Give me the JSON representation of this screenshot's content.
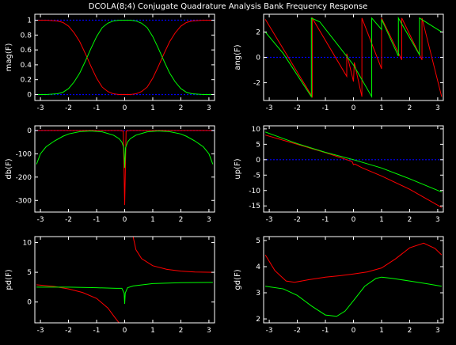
{
  "figure": {
    "title": "DCOLA(8;4) Conjugate Quadrature Analysis Bank Frequency Response",
    "background": "#000000",
    "axes_color": "#ffffff",
    "series_colors": {
      "red": "#ff0000",
      "green": "#00ff00",
      "reference": "#0000ff"
    }
  },
  "chart_data": [
    {
      "type": "line",
      "ylabel": "mag(F)",
      "xlim": [
        -3.2,
        3.2
      ],
      "ylim": [
        -0.08,
        1.08
      ],
      "xticks": [
        -3,
        -2,
        -1,
        0,
        1,
        2,
        3
      ],
      "yticks": [
        0,
        0.2,
        0.4,
        0.6,
        0.8,
        1
      ],
      "ytick_labels": [
        "0",
        "0.2",
        "0.4",
        "0.6",
        "0.8",
        "1"
      ],
      "reference_lines_y": [
        0,
        1
      ],
      "series": [
        {
          "color": "red",
          "x": [
            -3.14,
            -2.8,
            -2.4,
            -2.2,
            -2.0,
            -1.8,
            -1.6,
            -1.4,
            -1.2,
            -1.0,
            -0.8,
            -0.6,
            -0.4,
            -0.2,
            0,
            0.2,
            0.4,
            0.6,
            0.8,
            1.0,
            1.2,
            1.4,
            1.6,
            1.8,
            2.0,
            2.2,
            2.4,
            2.8,
            3.14
          ],
          "y": [
            1.0,
            1.0,
            0.99,
            0.97,
            0.92,
            0.83,
            0.71,
            0.55,
            0.38,
            0.22,
            0.1,
            0.04,
            0.01,
            0.0,
            0.0,
            0.0,
            0.01,
            0.04,
            0.1,
            0.22,
            0.38,
            0.55,
            0.71,
            0.83,
            0.92,
            0.97,
            0.99,
            1.0,
            1.0
          ]
        },
        {
          "color": "green",
          "x": [
            -3.14,
            -2.8,
            -2.4,
            -2.2,
            -2.0,
            -1.8,
            -1.6,
            -1.4,
            -1.2,
            -1.0,
            -0.8,
            -0.6,
            -0.4,
            -0.2,
            0,
            0.2,
            0.4,
            0.6,
            0.8,
            1.0,
            1.2,
            1.4,
            1.6,
            1.8,
            2.0,
            2.2,
            2.4,
            2.8,
            3.14
          ],
          "y": [
            0.0,
            0.0,
            0.01,
            0.03,
            0.08,
            0.17,
            0.29,
            0.45,
            0.62,
            0.78,
            0.9,
            0.96,
            0.99,
            1.0,
            1.0,
            1.0,
            0.99,
            0.96,
            0.9,
            0.78,
            0.62,
            0.45,
            0.29,
            0.17,
            0.08,
            0.03,
            0.01,
            0.0,
            0.0
          ]
        }
      ]
    },
    {
      "type": "line",
      "ylabel": "ang(F)",
      "xlim": [
        -3.2,
        3.2
      ],
      "ylim": [
        -3.4,
        3.4
      ],
      "xticks": [
        -3,
        -2,
        -1,
        0,
        1,
        2,
        3
      ],
      "yticks": [
        -2,
        0,
        2
      ],
      "reference_lines_y": [
        0
      ],
      "series": [
        {
          "color": "red",
          "x": [
            -3.14,
            -1.47,
            -1.47,
            -0.24,
            -0.24,
            0.0,
            0.03,
            0.3,
            0.3,
            1.0,
            1.0,
            1.72,
            1.72,
            2.44,
            2.44,
            3.14
          ],
          "y": [
            3.0,
            -3.1,
            3.1,
            -1.5,
            0.3,
            -1.9,
            -0.4,
            -3.1,
            3.1,
            -0.9,
            3.1,
            -0.2,
            3.1,
            -0.2,
            3.1,
            -3.1
          ]
        },
        {
          "color": "green",
          "x": [
            -3.14,
            -2.5,
            -1.5,
            -1.5,
            -1.2,
            -0.6,
            0.0,
            0.65,
            0.65,
            1.0,
            1.0,
            1.6,
            1.6,
            2.35,
            2.35,
            3.14
          ],
          "y": [
            2.0,
            0.3,
            -3.1,
            3.1,
            2.8,
            1.1,
            -0.6,
            -3.1,
            3.1,
            2.2,
            3.0,
            0.1,
            3.1,
            0.2,
            3.1,
            2.0
          ]
        }
      ]
    },
    {
      "type": "line",
      "ylabel": "db(F)",
      "xlim": [
        -3.2,
        3.2
      ],
      "ylim": [
        -350,
        20
      ],
      "xticks": [
        -3,
        -2,
        -1,
        0,
        1,
        2,
        3
      ],
      "yticks": [
        -300,
        -200,
        -100,
        0
      ],
      "reference_lines_y": [
        0
      ],
      "series": [
        {
          "color": "red",
          "x": [
            -3.14,
            -2.0,
            -1.0,
            -0.5,
            -0.2,
            -0.05,
            0,
            0.05,
            0.2,
            0.5,
            1.0,
            2.0,
            3.14
          ],
          "y": [
            0,
            0,
            0,
            0,
            0,
            -2,
            -320,
            -2,
            0,
            0,
            0,
            0,
            0
          ]
        },
        {
          "color": "green",
          "x": [
            -3.14,
            -3.0,
            -2.8,
            -2.5,
            -2.2,
            -2.0,
            -1.6,
            -1.2,
            -0.8,
            -0.4,
            -0.2,
            -0.1,
            -0.03,
            0,
            0.03,
            0.1,
            0.2,
            0.4,
            0.8,
            1.2,
            1.6,
            2.0,
            2.2,
            2.5,
            2.8,
            3.0,
            3.14
          ],
          "y": [
            -145,
            -100,
            -70,
            -45,
            -25,
            -15,
            -5,
            -2,
            -6,
            -20,
            -35,
            -50,
            -75,
            -160,
            -75,
            -50,
            -35,
            -20,
            -6,
            -2,
            -5,
            -15,
            -25,
            -45,
            -70,
            -100,
            -145
          ]
        }
      ]
    },
    {
      "type": "line",
      "ylabel": "up(F)",
      "xlim": [
        -3.2,
        3.2
      ],
      "ylim": [
        -17,
        11
      ],
      "xticks": [
        -3,
        -2,
        -1,
        0,
        1,
        2,
        3
      ],
      "yticks": [
        -15,
        -10,
        -5,
        0,
        5,
        10
      ],
      "reference_lines_y": [
        0
      ],
      "series": [
        {
          "color": "red",
          "x": [
            -3.14,
            -2.0,
            -1.0,
            -0.3,
            -0.05,
            0.0,
            0.05,
            0.3,
            1.0,
            2.0,
            3.14
          ],
          "y": [
            8.0,
            5.0,
            2.3,
            0.2,
            -0.6,
            -1.6,
            -1.4,
            -2.6,
            -5.3,
            -9.6,
            -15.5
          ]
        },
        {
          "color": "green",
          "x": [
            -3.14,
            -2.0,
            -1.0,
            0.0,
            1.0,
            2.0,
            3.14
          ],
          "y": [
            9.0,
            5.2,
            2.4,
            0.0,
            -2.7,
            -6.2,
            -10.5
          ]
        }
      ]
    },
    {
      "type": "line",
      "ylabel": "pd(F)",
      "xlim": [
        -3.2,
        3.2
      ],
      "ylim": [
        -3.5,
        11
      ],
      "xticks": [
        -3,
        -2,
        -1,
        0,
        1,
        2,
        3
      ],
      "yticks": [
        0,
        5,
        10
      ],
      "reference_lines_y": [],
      "series": [
        {
          "color": "red",
          "x": [
            -3.14,
            -2.5,
            -2.0,
            -1.5,
            -1.0,
            -0.6,
            -0.35,
            -0.2
          ],
          "y": [
            2.9,
            2.6,
            2.2,
            1.6,
            0.6,
            -1.0,
            -2.6,
            -3.5
          ]
        },
        {
          "color": "red",
          "x": [
            0.3,
            0.4,
            0.6,
            1.0,
            1.5,
            2.0,
            2.5,
            3.14
          ],
          "y": [
            11,
            8.8,
            7.3,
            6.1,
            5.5,
            5.2,
            5.05,
            5.0
          ]
        },
        {
          "color": "green",
          "x": [
            -3.14,
            -2.0,
            -1.0,
            -0.3,
            -0.1,
            -0.02,
            0.0,
            0.02,
            0.1,
            0.3,
            1.0,
            2.0,
            3.14
          ],
          "y": [
            2.5,
            2.5,
            2.4,
            2.3,
            2.3,
            1.5,
            -0.3,
            1.5,
            2.4,
            2.7,
            3.1,
            3.25,
            3.3
          ]
        }
      ]
    },
    {
      "type": "line",
      "ylabel": "gd(F)",
      "xlim": [
        -3.2,
        3.2
      ],
      "ylim": [
        1.85,
        5.15
      ],
      "xticks": [
        -3,
        -2,
        -1,
        0,
        1,
        2,
        3
      ],
      "yticks": [
        2,
        3,
        4,
        5
      ],
      "reference_lines_y": [],
      "series": [
        {
          "color": "red",
          "x": [
            -3.14,
            -2.8,
            -2.4,
            -2.1,
            -1.6,
            -1.0,
            -0.5,
            0.0,
            0.5,
            1.0,
            1.5,
            2.0,
            2.5,
            2.9,
            3.14
          ],
          "y": [
            4.45,
            3.85,
            3.45,
            3.4,
            3.5,
            3.6,
            3.65,
            3.72,
            3.8,
            3.95,
            4.3,
            4.72,
            4.9,
            4.7,
            4.45
          ]
        },
        {
          "color": "green",
          "x": [
            -3.14,
            -2.5,
            -2.0,
            -1.5,
            -1.0,
            -0.6,
            -0.3,
            0.0,
            0.4,
            0.8,
            1.0,
            1.4,
            2.0,
            2.6,
            3.14
          ],
          "y": [
            3.25,
            3.15,
            2.9,
            2.5,
            2.15,
            2.1,
            2.3,
            2.7,
            3.25,
            3.55,
            3.6,
            3.55,
            3.45,
            3.35,
            3.25
          ]
        }
      ]
    }
  ]
}
